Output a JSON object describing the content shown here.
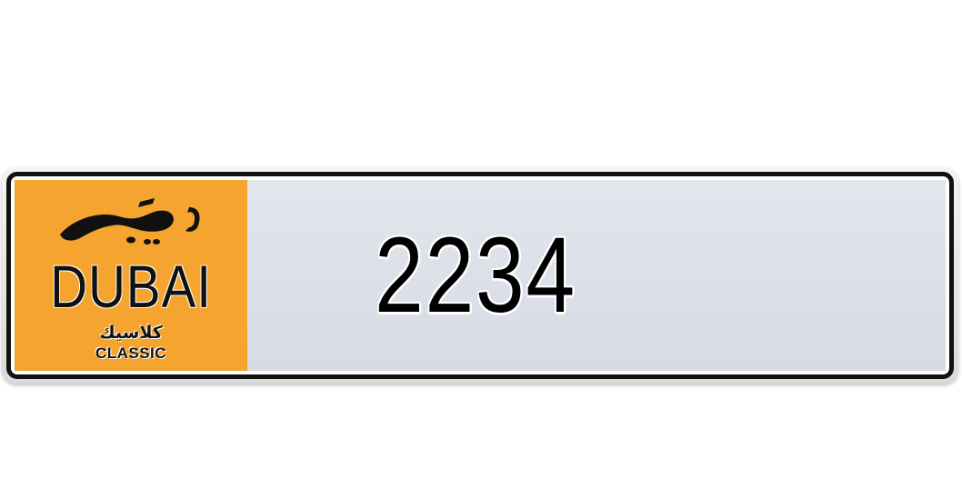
{
  "plate": {
    "emirate_arabic": "دبي",
    "emirate": "DUBAI",
    "series_arabic": "كلاسيك",
    "series": "CLASSIC",
    "number": "2234"
  },
  "colors": {
    "emirate_panel": "#f5a52f",
    "number_panel": "#dde1e8",
    "border": "#111111",
    "text": "#000000"
  }
}
